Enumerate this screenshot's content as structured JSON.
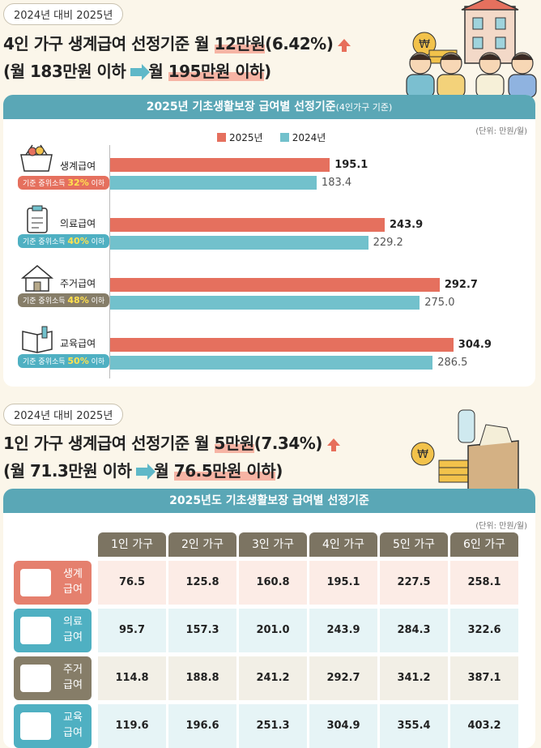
{
  "section1": {
    "badge": "2024년 대비 2025년",
    "headline_pre": "4인 가구 생계급여 선정기준 월 ",
    "headline_highlight": "12만원",
    "headline_post": "(6.42%)",
    "subline_pre": "(월 183만원 이하",
    "subline_mid": "월 ",
    "subline_highlight": "195만원 이하",
    "subline_post": ")"
  },
  "section2": {
    "badge": "2024년 대비 2025년",
    "headline_pre": "1인 가구 생계급여 선정기준 월 ",
    "headline_highlight": "5만원",
    "headline_post": "(7.34%)",
    "subline_pre": "(월 71.3만원 이하",
    "subline_mid": "월 ",
    "subline_highlight": "76.5만원 이하",
    "subline_post": ")"
  },
  "chart_data": [
    {
      "type": "bar",
      "orientation": "horizontal",
      "title": "2025년 기초생활보장 급여별 선정기준",
      "title_note": "(4인가구 기준)",
      "unit": "(단위: 만원/월)",
      "categories": [
        "생계급여",
        "의료급여",
        "주거급여",
        "교육급여"
      ],
      "criteria": [
        {
          "prefix": "기준 중위소득 ",
          "pct": "32%",
          "suffix": " 이하"
        },
        {
          "prefix": "기준 중위소득 ",
          "pct": "40%",
          "suffix": " 이하"
        },
        {
          "prefix": "기준 중위소득 ",
          "pct": "48%",
          "suffix": " 이하"
        },
        {
          "prefix": "기준 중위소득 ",
          "pct": "50%",
          "suffix": " 이하"
        }
      ],
      "series": [
        {
          "name": "2025년",
          "color": "#e5705e",
          "values": [
            195.1,
            243.9,
            292.7,
            304.9
          ],
          "labels": [
            "195.1",
            "243.9",
            "292.7",
            "304.9"
          ]
        },
        {
          "name": "2024년",
          "color": "#72c1cc",
          "values": [
            183.4,
            229.2,
            275.0,
            286.5
          ],
          "labels": [
            "183.4",
            "229.2",
            "275.0",
            "286.5"
          ]
        }
      ],
      "xlim": [
        0,
        340
      ]
    },
    {
      "type": "table",
      "title": "2025년도 기초생활보장 급여별 선정기준",
      "unit": "(단위: 만원/월)",
      "columns": [
        "1인 가구",
        "2인 가구",
        "3인 가구",
        "4인 가구",
        "5인 가구",
        "6인 가구"
      ],
      "rows": [
        {
          "label_top": "생계",
          "label_bottom": "급여",
          "color": "#e5806e",
          "bg": "#fcece6",
          "values": [
            "76.5",
            "125.8",
            "160.8",
            "195.1",
            "227.5",
            "258.1"
          ]
        },
        {
          "label_top": "의료",
          "label_bottom": "급여",
          "color": "#4fb0c2",
          "bg": "#e6f4f6",
          "values": [
            "95.7",
            "157.3",
            "201.0",
            "243.9",
            "284.3",
            "322.6"
          ]
        },
        {
          "label_top": "주거",
          "label_bottom": "급여",
          "color": "#867d68",
          "bg": "#f2efe6",
          "values": [
            "114.8",
            "188.8",
            "241.2",
            "292.7",
            "341.2",
            "387.1"
          ]
        },
        {
          "label_top": "교육",
          "label_bottom": "급여",
          "color": "#4fb0c2",
          "bg": "#e6f4f6",
          "values": [
            "119.6",
            "196.6",
            "251.3",
            "304.9",
            "355.4",
            "403.2"
          ]
        }
      ]
    }
  ],
  "colors": {
    "accent_red": "#e5705e",
    "accent_blue": "#72c1cc",
    "teal": "#5aa7b6",
    "brown": "#7c7462"
  }
}
